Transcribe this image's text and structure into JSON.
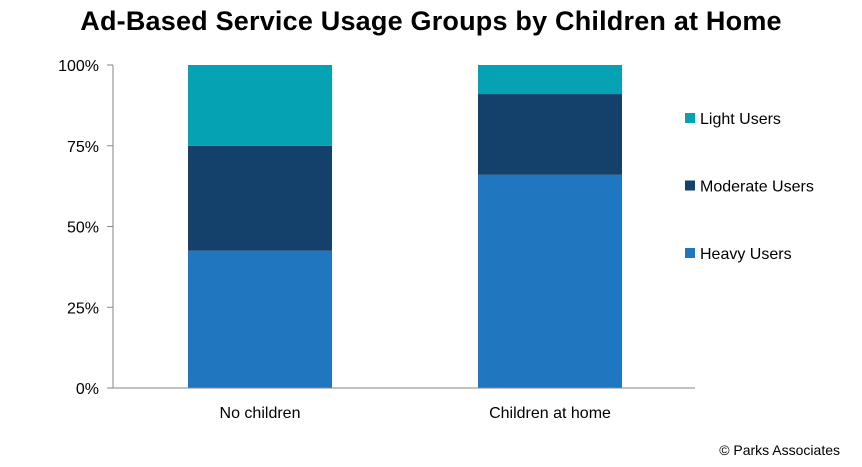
{
  "title": "Ad-Based Service Usage Groups by Children at Home",
  "credit": "©  Parks Associates",
  "chart_data": {
    "type": "bar",
    "stacked": true,
    "percent": true,
    "categories": [
      "No children",
      "Children at home"
    ],
    "series": [
      {
        "name": "Heavy Users",
        "values": [
          42.5,
          66
        ],
        "color": "#1f77bf"
      },
      {
        "name": "Moderate Users",
        "values": [
          32.5,
          25
        ],
        "color": "#13416b"
      },
      {
        "name": "Light Users",
        "values": [
          25,
          9
        ],
        "color": "#05a2b4"
      }
    ],
    "ylim": [
      0,
      100
    ],
    "yticks": [
      "0%",
      "25%",
      "50%",
      "75%",
      "100%"
    ],
    "ytick_values": [
      0,
      25,
      50,
      75,
      100
    ],
    "grid": false,
    "legend": "right"
  }
}
